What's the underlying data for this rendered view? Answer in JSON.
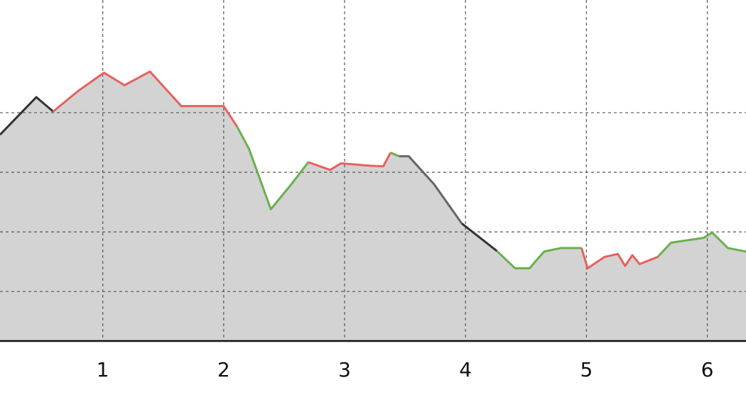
{
  "chart_data": {
    "type": "area",
    "xlim": [
      0.15,
      6.32
    ],
    "ylim": [
      0.17,
      5.89
    ],
    "xticks": [
      1,
      2,
      3,
      4,
      5,
      6
    ],
    "ygrid": [
      1,
      2,
      3,
      4
    ],
    "grid": true,
    "fill_color": "#d3d3d3",
    "segments": [
      {
        "color": "#333333",
        "x": [
          0.15,
          0.45,
          0.59
        ],
        "values": [
          3.63,
          4.26,
          4.02
        ]
      },
      {
        "color": "#e86060",
        "x": [
          0.59,
          0.8,
          1.01,
          1.18,
          1.39,
          1.65,
          2.0,
          2.11
        ],
        "values": [
          4.02,
          4.37,
          4.67,
          4.46,
          4.69,
          4.11,
          4.11,
          3.77
        ]
      },
      {
        "color": "#6ab04c",
        "x": [
          2.11,
          2.21,
          2.39,
          2.56,
          2.7
        ],
        "values": [
          3.77,
          3.39,
          2.38,
          2.8,
          3.17
        ]
      },
      {
        "color": "#e86060",
        "x": [
          2.7,
          2.88,
          2.97,
          3.21,
          3.32,
          3.38
        ],
        "values": [
          3.17,
          3.04,
          3.15,
          3.11,
          3.1,
          3.33
        ]
      },
      {
        "color": "#6ab04c",
        "x": [
          3.38,
          3.45
        ],
        "values": [
          3.33,
          3.27
        ]
      },
      {
        "color": "#666666",
        "x": [
          3.45,
          3.53,
          3.74,
          3.97
        ],
        "values": [
          3.27,
          3.27,
          2.8,
          2.14
        ]
      },
      {
        "color": "#333333",
        "x": [
          3.97,
          4.26
        ],
        "values": [
          2.14,
          1.68
        ]
      },
      {
        "color": "#6ab04c",
        "x": [
          4.26,
          4.41,
          4.53,
          4.65,
          4.79,
          4.96
        ],
        "values": [
          1.68,
          1.39,
          1.39,
          1.67,
          1.73,
          1.73
        ]
      },
      {
        "color": "#e86060",
        "x": [
          4.96,
          5.01,
          5.15,
          5.26,
          5.32,
          5.38,
          5.44,
          5.59
        ],
        "values": [
          1.73,
          1.39,
          1.58,
          1.63,
          1.43,
          1.61,
          1.46,
          1.58
        ]
      },
      {
        "color": "#6ab04c",
        "x": [
          5.59,
          5.7,
          5.97,
          6.04,
          6.17,
          6.32
        ],
        "values": [
          1.58,
          1.82,
          1.9,
          1.99,
          1.73,
          1.67
        ]
      }
    ]
  }
}
